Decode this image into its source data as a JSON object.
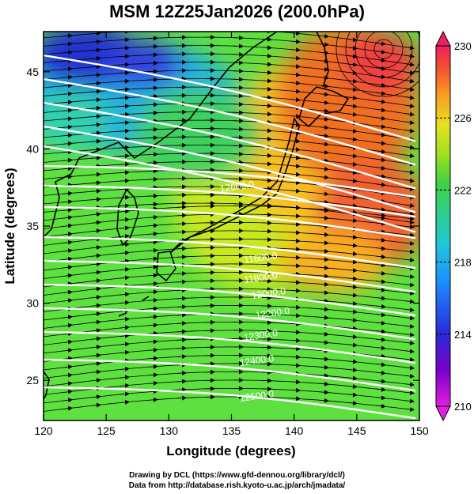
{
  "title": "MSM 12Z25Jan2026 (200.0hPa)",
  "x_axis": {
    "label": "Longitude (degrees)",
    "ticks": [
      "120",
      "125",
      "130",
      "135",
      "140",
      "145",
      "150"
    ],
    "range": [
      120,
      150
    ]
  },
  "y_axis": {
    "label": "Latitude  (degrees)",
    "ticks": [
      "25",
      "30",
      "35",
      "40",
      "45"
    ],
    "range": [
      22.4,
      47.6
    ]
  },
  "colorbar": {
    "ticks": [
      "230",
      "226",
      "222",
      "218",
      "214",
      "210"
    ],
    "min": 210,
    "max": 230,
    "colors": [
      "#e020e0",
      "#7a00c8",
      "#2a2ad8",
      "#1e90ff",
      "#20c8d8",
      "#30d080",
      "#40d040",
      "#a0e020",
      "#e8e020",
      "#f8a020",
      "#f05030",
      "#f02060"
    ]
  },
  "contour_labels": [
    "11600.0",
    "11800.0",
    "12000.0",
    "12200.0",
    "12300.0",
    "12400.0",
    "12500.0",
    "12600.0"
  ],
  "credits": {
    "line1": "Drawing by DCL (https://www.gfd-dennou.org/library/dcl/)",
    "line2": "Data from http://database.rish.kyoto-u.ac.jp/arch/jmadata/"
  }
}
